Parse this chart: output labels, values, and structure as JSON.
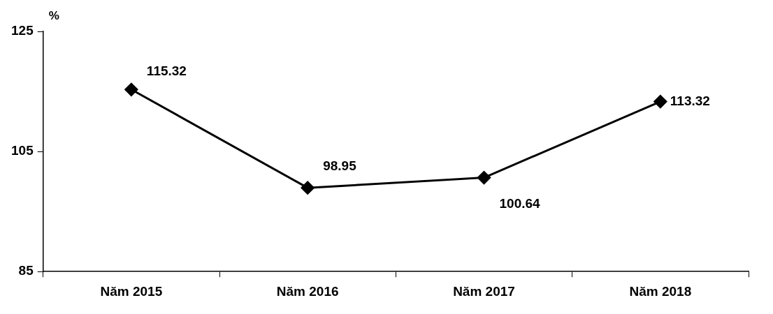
{
  "chart_data": {
    "type": "line",
    "ylabel": "%",
    "categories": [
      "Năm 2015",
      "Năm 2016",
      "Năm 2017",
      "Năm 2018"
    ],
    "series": [
      {
        "color": "#000000",
        "values": [
          115.32,
          98.95,
          100.64,
          113.32
        ]
      }
    ],
    "ylim": [
      85,
      125
    ],
    "yticks": [
      85,
      105,
      125
    ],
    "grid": false,
    "legend": false,
    "marker": "diamond",
    "line_style": "solid",
    "data_labels": true
  }
}
